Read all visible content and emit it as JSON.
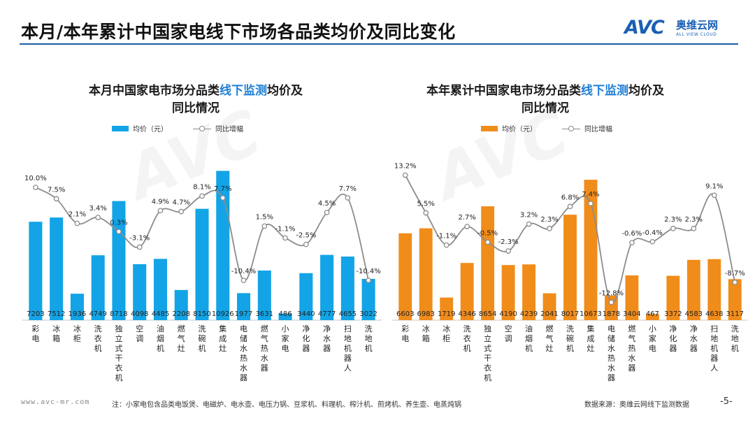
{
  "page": {
    "title": "本月/本年累计中国家电线下市场各品类均价及同比变化",
    "logo_mark": "AVC",
    "logo_cn": "奥维云网",
    "logo_en": "ALL VIEW CLOUD",
    "footer_url": "www.avc-mr.com",
    "footer_note": "注：小家电包含品类电饭煲、电磁炉、电水壶、电压力锅、豆浆机、料理机、榨汁机、煎烤机、养生壶、电蒸炖锅",
    "footer_source": "数据来源：奥维云网线下监测数据",
    "page_number": "-5-",
    "colors": {
      "rule": "#1b5ea8",
      "left_bar": "#12a4e6",
      "right_bar": "#f08c1a",
      "line": "#8c8c8c",
      "highlight": "#1f7fd6"
    }
  },
  "left": {
    "title_pre": "本月中国家电市场分品类",
    "title_hl": "线下监测",
    "title_post": "均价及",
    "title_line2": "同比情况",
    "legend_bar": "均价（元）",
    "legend_line": "同比增幅"
  },
  "right": {
    "title_pre": "本年累计中国家电市场分品类",
    "title_hl": "线下监测",
    "title_post": "均价及",
    "title_line2": "同比情况",
    "legend_bar": "均价（元）",
    "legend_line": "同比增幅"
  },
  "chart_data": [
    {
      "type": "bar",
      "title": "本月中国家电市场分品类线下监测均价及同比情况",
      "categories": [
        "彩电",
        "冰箱",
        "冰柜",
        "洗衣机",
        "独立式干衣机",
        "空调",
        "油烟机",
        "燃气灶",
        "洗碗机",
        "集成灶",
        "电储水热水器",
        "燃气热水器",
        "小家电",
        "净化器",
        "净水器",
        "扫地机器人",
        "洗地机"
      ],
      "series": [
        {
          "name": "均价（元）",
          "kind": "bar",
          "color": "#12a4e6",
          "values": [
            7203,
            7512,
            1936,
            4749,
            8718,
            4098,
            4485,
            2208,
            8150,
            10926,
            1977,
            3631,
            486,
            3440,
            4777,
            4655,
            3022
          ],
          "labels": [
            "7203",
            "7512",
            "1936",
            "4749",
            "8718",
            "4098",
            "4485",
            "2208",
            "8150",
            "10926",
            "1977",
            "3631",
            "486",
            "3440",
            "4777",
            "4655",
            "3022"
          ]
        },
        {
          "name": "同比增幅",
          "kind": "line",
          "color": "#8c8c8c",
          "values": [
            10.0,
            7.5,
            2.1,
            3.4,
            0.3,
            -3.1,
            4.9,
            4.7,
            8.1,
            7.7,
            -10.4,
            1.5,
            -1.1,
            -2.5,
            4.5,
            7.7,
            -10.4
          ],
          "labels": [
            "10.0%",
            "7.5%",
            "2.1%",
            "3.4%",
            "0.3%",
            "-3.1%",
            "4.9%",
            "4.7%",
            "8.1%",
            "7.7%",
            "-10.4%",
            "1.5%",
            "-1.1%",
            "-2.5%",
            "4.5%",
            "7.7%",
            "-10.4%"
          ]
        }
      ],
      "ylim_bar": [
        0,
        11000
      ],
      "ylim_line": [
        -13,
        14
      ]
    },
    {
      "type": "bar",
      "title": "本年累计中国家电市场分品类线下监测均价及同比情况",
      "categories": [
        "彩电",
        "冰箱",
        "冰柜",
        "洗衣机",
        "独立式干衣机",
        "空调",
        "油烟机",
        "燃气灶",
        "洗碗机",
        "集成灶",
        "电储水热水器",
        "燃气热水器",
        "小家电",
        "净化器",
        "净水器",
        "扫地机器人",
        "洗地机"
      ],
      "series": [
        {
          "name": "均价（元）",
          "kind": "bar",
          "color": "#f08c1a",
          "values": [
            6603,
            6983,
            1719,
            4346,
            8654,
            4190,
            4239,
            2041,
            8017,
            10673,
            1878,
            3404,
            467,
            3372,
            4583,
            4638,
            3117
          ],
          "labels": [
            "6603",
            "6983",
            "1719",
            "4346",
            "8654",
            "4190",
            "4239",
            "2041",
            "8017",
            "10673",
            "1878",
            "3404",
            "467",
            "3372",
            "4583",
            "4638",
            "3117"
          ]
        },
        {
          "name": "同比增幅",
          "kind": "line",
          "color": "#8c8c8c",
          "values": [
            13.2,
            5.5,
            -1.1,
            2.7,
            -0.5,
            -2.3,
            3.2,
            2.3,
            6.8,
            7.4,
            -12.8,
            -0.6,
            -0.4,
            2.3,
            2.3,
            9.1,
            -8.7
          ],
          "labels": [
            "13.2%",
            "5.5%",
            "-1.1%",
            "2.7%",
            "-0.5%",
            "-2.3%",
            "3.2%",
            "2.3%",
            "6.8%",
            "7.4%",
            "-12.8%",
            "-0.6%",
            "-0.4%",
            "2.3%",
            "2.3%",
            "9.1%",
            "-8.7%"
          ]
        }
      ],
      "ylim_bar": [
        0,
        11000
      ],
      "ylim_line": [
        -15,
        15
      ]
    }
  ]
}
